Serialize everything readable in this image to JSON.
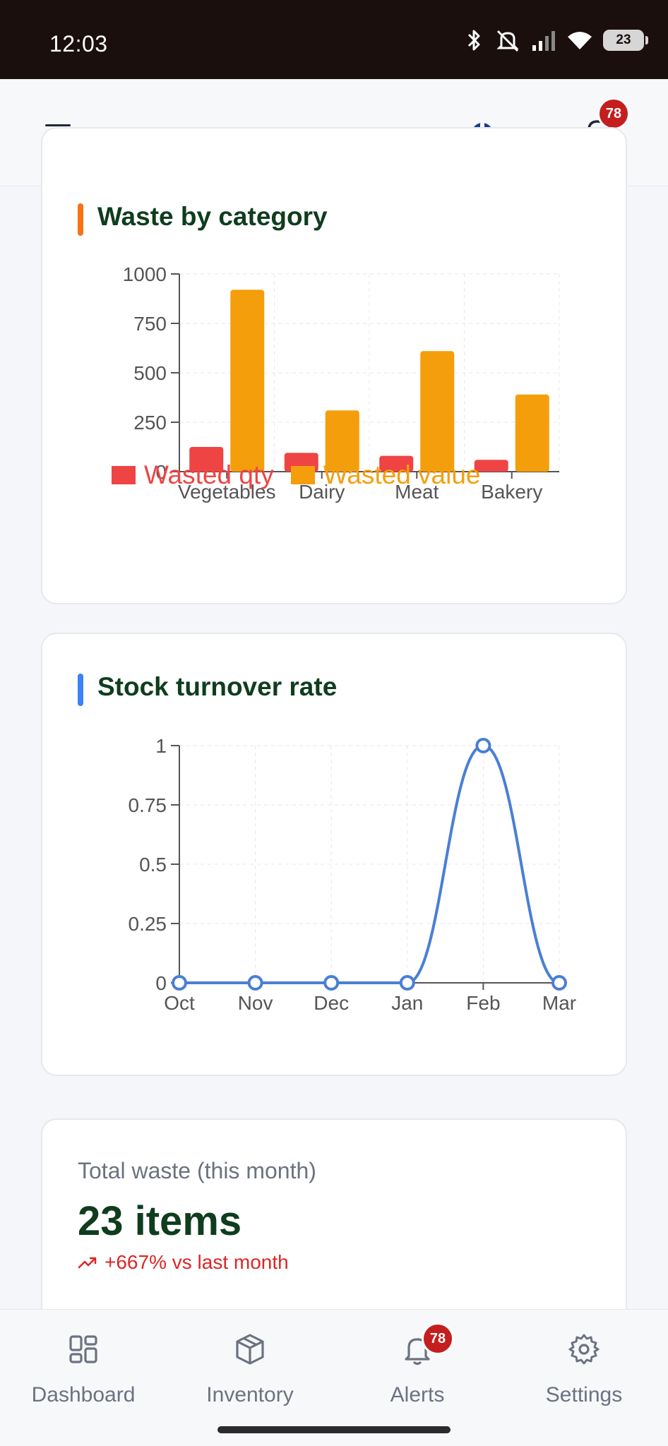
{
  "status_bar": {
    "time": "12:03",
    "battery": "23"
  },
  "header": {
    "notification_count": "78"
  },
  "waste_card": {
    "title": "Waste by category",
    "accent": "#f97316"
  },
  "turnover_card": {
    "title": "Stock turnover rate",
    "accent": "#3b82f6"
  },
  "chart_data": [
    {
      "type": "bar",
      "title": "Waste by category",
      "categories": [
        "Vegetables",
        "Dairy",
        "Meat",
        "Bakery"
      ],
      "series": [
        {
          "name": "Wasted qty",
          "color": "#ef4444",
          "values": [
            125,
            95,
            80,
            60
          ]
        },
        {
          "name": "Wasted value",
          "color": "#f59e0b",
          "values": [
            920,
            310,
            610,
            390
          ]
        }
      ],
      "yticks": [
        "0",
        "250",
        "500",
        "750",
        "1000"
      ],
      "ylim": [
        0,
        1000
      ],
      "grid": true,
      "legend": "bottom"
    },
    {
      "type": "line",
      "title": "Stock turnover rate",
      "categories": [
        "Oct",
        "Nov",
        "Dec",
        "Jan",
        "Feb",
        "Mar"
      ],
      "series": [
        {
          "color": "#4a7fd4",
          "values": [
            0,
            0,
            0,
            0,
            1,
            0
          ]
        }
      ],
      "yticks": [
        "0",
        "0.25",
        "0.5",
        "0.75",
        "1"
      ],
      "ylim": [
        0,
        1
      ],
      "grid": true
    }
  ],
  "kpi": {
    "label": "Total waste (this month)",
    "value": "23 items",
    "delta": "+667% vs last month"
  },
  "bottom_nav": {
    "items": [
      {
        "label": "Dashboard"
      },
      {
        "label": "Inventory"
      },
      {
        "label": "Alerts",
        "badge": "78"
      },
      {
        "label": "Settings"
      }
    ]
  }
}
